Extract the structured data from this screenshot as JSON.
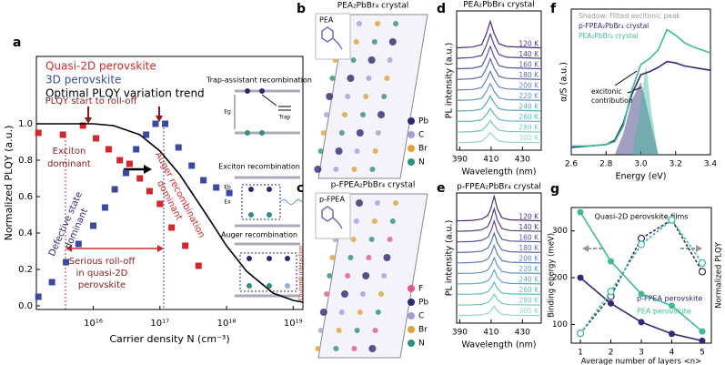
{
  "chart_data": [
    {
      "label": "a",
      "type": "scatter",
      "xlabel": "Carrier density N (cm⁻³)",
      "ylabel": "Normalized PLQY (a.u.)",
      "xscale": "log",
      "xlim": [
        1400000000000000.0,
        1.4e+19
      ],
      "xticks": [
        {
          "value": 1e+16,
          "label": "10¹⁶"
        },
        {
          "value": 1e+17,
          "label": "10¹⁷"
        },
        {
          "value": 1e+18,
          "label": "10¹⁸"
        },
        {
          "value": 1e+19,
          "label": "10¹⁹"
        }
      ],
      "ylim": [
        -0.02,
        1.37
      ],
      "yticks": [
        {
          "value": 0,
          "label": "0.0"
        },
        0.2,
        0.4,
        0.6,
        0.8,
        {
          "value": 1,
          "label": "1.0"
        }
      ],
      "series": [
        {
          "name": "Quasi-2D perovskite",
          "color": "#d62728",
          "marker": "square",
          "x": [
            1500000000000000.0,
            3500000000000000.0,
            7000000000000000.0,
            1.1e+16,
            1.7e+16,
            2.5e+16,
            3.5e+16,
            5e+16,
            7e+16,
            1e+17,
            1.5e+17,
            2.4e+17,
            3.8e+17
          ],
          "values": [
            0.95,
            0.94,
            0.99,
            0.92,
            0.86,
            0.8,
            0.78,
            0.7,
            0.63,
            0.56,
            0.43,
            0.33,
            0.22
          ]
        },
        {
          "name": "3D perovskite",
          "color": "#3a4aa0",
          "marker": "square",
          "x": [
            1500000000000000.0,
            2400000000000000.0,
            3900000000000000.0,
            6000000000000000.0,
            1e+16,
            1.5e+16,
            2.1e+16,
            3.1e+16,
            4.4e+16,
            6.2e+16,
            8.6e+16,
            1.2e+17,
            1.9e+17,
            3e+17,
            4.5e+17,
            7e+17,
            1.1e+18
          ],
          "values": [
            0.05,
            0.13,
            0.24,
            0.34,
            0.44,
            0.54,
            0.64,
            0.73,
            0.86,
            0.94,
            1.0,
            1.0,
            0.87,
            0.77,
            0.69,
            0.65,
            0.62
          ]
        },
        {
          "name": "Optimal PLQY variation trend",
          "color": "#000000",
          "marker": "none",
          "x": [
            1400000000000000.0,
            5000000000000000.0,
            1e+16,
            2e+16,
            5e+16,
            1e+17,
            2e+17,
            5e+17,
            1e+18,
            2e+18,
            5e+18,
            1e+19,
            1.4e+19
          ],
          "values": [
            1,
            1,
            1,
            0.99,
            0.94,
            0.85,
            0.72,
            0.5,
            0.33,
            0.19,
            0.07,
            0.03,
            0.02
          ]
        }
      ],
      "annotations": [
        {
          "lines": [
            "PLQY start to roll-off"
          ],
          "color": "#8b1a1a"
        },
        {
          "lines": [
            "Exciton",
            "dominant"
          ],
          "color": "#8b1a1a"
        },
        {
          "lines": [
            "Defective state",
            "dominant"
          ],
          "color": "#2e2a78"
        },
        {
          "lines": [
            "Auger recombination",
            "dominant"
          ],
          "color": "#d62728"
        },
        {
          "lines": [
            "Serious roll-off",
            "in quasi-2D",
            "perovskite"
          ],
          "color": "#8b1a1a"
        }
      ]
    },
    {
      "label": "d",
      "type": "line",
      "title": "PEA₂PbBr₄ crystal",
      "xlabel": "Wavelength (nm)",
      "ylabel": "PL intensity (a.u.)",
      "xlim": [
        388,
        442
      ],
      "xticks": [
        390,
        410,
        430
      ],
      "x": [
        388,
        398,
        404,
        407,
        409.5,
        412,
        415,
        420,
        442
      ],
      "series": [
        {
          "name": "120 K",
          "color": "#4a2a7e",
          "marker": "none",
          "values": [
            0.03,
            0.06,
            0.15,
            0.55,
            1.0,
            0.55,
            0.18,
            0.08,
            0.03
          ]
        },
        {
          "name": "140 K",
          "color": "#50408f",
          "marker": "none",
          "values": [
            0.03,
            0.06,
            0.14,
            0.51,
            0.92,
            0.51,
            0.17,
            0.07,
            0.03
          ]
        },
        {
          "name": "160 K",
          "color": "#52559e",
          "marker": "none",
          "values": [
            0.03,
            0.05,
            0.13,
            0.47,
            0.85,
            0.47,
            0.15,
            0.07,
            0.03
          ]
        },
        {
          "name": "180 K",
          "color": "#5a6bb0",
          "marker": "none",
          "values": [
            0.02,
            0.05,
            0.12,
            0.43,
            0.78,
            0.43,
            0.14,
            0.06,
            0.02
          ]
        },
        {
          "name": "200 K",
          "color": "#5f80bd",
          "marker": "none",
          "values": [
            0.02,
            0.04,
            0.11,
            0.39,
            0.71,
            0.39,
            0.13,
            0.06,
            0.02
          ]
        },
        {
          "name": "220 K",
          "color": "#5f95c4",
          "marker": "none",
          "values": [
            0.02,
            0.04,
            0.1,
            0.35,
            0.64,
            0.35,
            0.12,
            0.05,
            0.02
          ]
        },
        {
          "name": "240 K",
          "color": "#5aa9c4",
          "marker": "none",
          "values": [
            0.02,
            0.03,
            0.09,
            0.31,
            0.57,
            0.31,
            0.1,
            0.05,
            0.02
          ]
        },
        {
          "name": "260 K",
          "color": "#5bbcbf",
          "marker": "none",
          "values": [
            0.02,
            0.03,
            0.08,
            0.28,
            0.5,
            0.28,
            0.09,
            0.04,
            0.02
          ]
        },
        {
          "name": "280 K",
          "color": "#6fcab8",
          "marker": "none",
          "values": [
            0.01,
            0.03,
            0.07,
            0.24,
            0.44,
            0.24,
            0.08,
            0.04,
            0.01
          ]
        },
        {
          "name": "300 K",
          "color": "#8fd8c4",
          "marker": "none",
          "values": [
            0.01,
            0.02,
            0.06,
            0.21,
            0.38,
            0.21,
            0.07,
            0.03,
            0.01
          ]
        }
      ]
    },
    {
      "label": "e",
      "type": "line",
      "title": "p-FPEA₂PbBr₄ crystal",
      "xlabel": "Wavelength (nm)",
      "ylabel": "PL intensity (a.u.)",
      "xlim": [
        388,
        442
      ],
      "xticks": [
        390,
        410,
        430
      ],
      "x": [
        388,
        398,
        404,
        408,
        410,
        412,
        414,
        417,
        422,
        442
      ],
      "series": [
        {
          "name": "120 K",
          "color": "#4a2a7e",
          "marker": "none",
          "values": [
            0.03,
            0.05,
            0.1,
            0.25,
            0.55,
            1.0,
            0.5,
            0.15,
            0.07,
            0.03
          ]
        },
        {
          "name": "140 K",
          "color": "#50408f",
          "marker": "none",
          "values": [
            0.03,
            0.05,
            0.09,
            0.23,
            0.51,
            0.92,
            0.46,
            0.14,
            0.06,
            0.03
          ]
        },
        {
          "name": "160 K",
          "color": "#52559e",
          "marker": "none",
          "values": [
            0.03,
            0.04,
            0.09,
            0.21,
            0.47,
            0.85,
            0.43,
            0.13,
            0.06,
            0.03
          ]
        },
        {
          "name": "180 K",
          "color": "#5a6bb0",
          "marker": "none",
          "values": [
            0.02,
            0.04,
            0.08,
            0.2,
            0.43,
            0.78,
            0.39,
            0.12,
            0.05,
            0.02
          ]
        },
        {
          "name": "200 K",
          "color": "#5f80bd",
          "marker": "none",
          "values": [
            0.02,
            0.04,
            0.07,
            0.18,
            0.39,
            0.71,
            0.36,
            0.11,
            0.05,
            0.02
          ]
        },
        {
          "name": "220 K",
          "color": "#5f95c4",
          "marker": "none",
          "values": [
            0.02,
            0.03,
            0.06,
            0.16,
            0.35,
            0.64,
            0.32,
            0.1,
            0.04,
            0.02
          ]
        },
        {
          "name": "240 K",
          "color": "#5aa9c4",
          "marker": "none",
          "values": [
            0.02,
            0.03,
            0.06,
            0.14,
            0.31,
            0.57,
            0.29,
            0.09,
            0.04,
            0.02
          ]
        },
        {
          "name": "260 K",
          "color": "#5bbcbf",
          "marker": "none",
          "values": [
            0.02,
            0.03,
            0.05,
            0.13,
            0.28,
            0.5,
            0.25,
            0.08,
            0.04,
            0.02
          ]
        },
        {
          "name": "280 K",
          "color": "#6fcab8",
          "marker": "none",
          "values": [
            0.01,
            0.02,
            0.04,
            0.11,
            0.24,
            0.44,
            0.22,
            0.07,
            0.03,
            0.01
          ]
        },
        {
          "name": "300 K",
          "color": "#8fd8c4",
          "marker": "none",
          "values": [
            0.01,
            0.02,
            0.04,
            0.1,
            0.21,
            0.38,
            0.19,
            0.06,
            0.03,
            0.01
          ]
        }
      ]
    },
    {
      "label": "f",
      "type": "line",
      "xlabel": "Energy (eV)",
      "ylabel": "α/S (a.u.)",
      "xlim": [
        2.6,
        3.4
      ],
      "xticks": [
        2.6,
        2.8,
        {
          "value": 3,
          "label": "3.0"
        },
        3.2,
        3.4
      ],
      "ylim": [
        0,
        1
      ],
      "series": [
        {
          "color": "#2e2a78",
          "marker": "none",
          "fill": true,
          "x": [
            2.85,
            2.9,
            2.95,
            3.0,
            3.05,
            3.1
          ],
          "values": [
            0,
            0.15,
            0.38,
            0.5,
            0.25,
            0
          ]
        },
        {
          "color": "#3dbb98",
          "marker": "none",
          "fill": true,
          "x": [
            2.95,
            3.0,
            3.03,
            3.06,
            3.1
          ],
          "values": [
            0,
            0.35,
            0.62,
            0.3,
            0
          ]
        },
        {
          "name": "p-FPEA₂PbBr₄ crystal",
          "color": "#2e2a78",
          "marker": "none",
          "x": [
            2.6,
            2.7,
            2.8,
            2.85,
            2.9,
            2.95,
            3.0,
            3.05,
            3.1,
            3.15,
            3.2,
            3.25,
            3.3,
            3.4
          ],
          "values": [
            0.05,
            0.06,
            0.07,
            0.1,
            0.22,
            0.42,
            0.55,
            0.57,
            0.6,
            0.64,
            0.63,
            0.61,
            0.6,
            0.58
          ]
        },
        {
          "name": "PEA₂PbBr₄ crystal",
          "color": "#3dbb98",
          "marker": "none",
          "x": [
            2.6,
            2.7,
            2.8,
            2.85,
            2.9,
            2.95,
            3.0,
            3.05,
            3.1,
            3.15,
            3.2,
            3.25,
            3.3,
            3.4
          ],
          "values": [
            0.06,
            0.06,
            0.07,
            0.09,
            0.2,
            0.45,
            0.62,
            0.66,
            0.72,
            0.86,
            0.82,
            0.77,
            0.74,
            0.7
          ]
        }
      ],
      "annotations": [
        {
          "lines": [
            "Shadow: Fitted excitonic peak"
          ],
          "color": "#999999"
        },
        {
          "lines": [
            "excitonic",
            "contribution"
          ],
          "color": "#000000"
        }
      ]
    },
    {
      "label": "g",
      "type": "line",
      "title": "Quasi-2D perovskite films",
      "xlabel": "Average number of layers <n>",
      "ylabel": "Binding energy (meV)",
      "y2label": "Normalized PLQY",
      "x": [
        1,
        2,
        3,
        4,
        5
      ],
      "xlim": [
        0.7,
        5.3
      ],
      "xticks": [
        1,
        2,
        3,
        4,
        5
      ],
      "ylim": [
        60,
        350
      ],
      "yticks": [
        100,
        200,
        300
      ],
      "y2lim": [
        0,
        1.1
      ],
      "series": [
        {
          "name": "p-FPEA perovskite",
          "color": "#2e2a78",
          "marker": "circle",
          "line": true,
          "values": [
            200,
            145,
            105,
            80,
            65
          ]
        },
        {
          "name": "PEA perovskite",
          "color": "#3dbb98",
          "marker": "circle",
          "line": true,
          "values": [
            340,
            235,
            165,
            140,
            85
          ]
        },
        {
          "color": "#2e2a78",
          "marker": "open-circle",
          "line": true,
          "dash": true,
          "axis": "y2",
          "values": [
            0.08,
            0.38,
            0.85,
            1.0,
            0.58
          ]
        },
        {
          "color": "#3dbb98",
          "marker": "open-circle",
          "line": true,
          "dash": true,
          "axis": "y2",
          "values": [
            0.08,
            0.42,
            0.8,
            1.0,
            0.65
          ]
        }
      ]
    }
  ],
  "diagrams": {
    "a_inset": {
      "titles": [
        "Trap-assistant recombination",
        "Exciton recombination",
        "Auger recombination"
      ],
      "labels": [
        "Trap",
        "Eg",
        "Eb",
        "Ex",
        "Coulomb interaction"
      ]
    },
    "b": {
      "label": "b",
      "title": "PEA₂PbBr₄ crystal",
      "molecule": "PEA",
      "elements": [
        {
          "name": "Pb",
          "color": "#2b2a6e"
        },
        {
          "name": "C",
          "color": "#a99bd8"
        },
        {
          "name": "Br",
          "color": "#e0a03a"
        },
        {
          "name": "N",
          "color": "#2f8f7f"
        }
      ]
    },
    "c": {
      "label": "c",
      "title": "p-FPEA₂PbBr₄ crystal",
      "molecule": "p-FPEA",
      "elements": [
        {
          "name": "F",
          "color": "#e05a8a"
        },
        {
          "name": "Pb",
          "color": "#2b2a6e"
        },
        {
          "name": "C",
          "color": "#a99bd8"
        },
        {
          "name": "Br",
          "color": "#e0a03a"
        },
        {
          "name": "N",
          "color": "#2f8f7f"
        }
      ]
    }
  }
}
